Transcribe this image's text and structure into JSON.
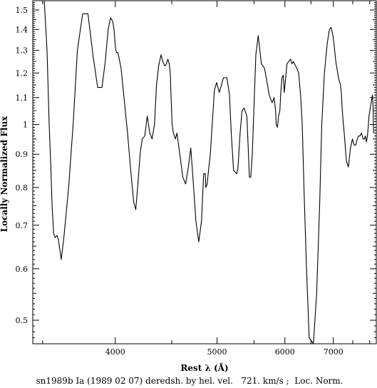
{
  "chart_data": {
    "type": "line",
    "title": "",
    "xlabel": "Rest λ (Å)",
    "ylabel": "Locally Normalized Flux",
    "caption": "sn1989b Ia (1989 02 07) deredsh. by hel. vel.   721. km/s ;  Loc. Norm.",
    "x_scale": "reciprocal",
    "y_scale": "log",
    "xlim": [
      3442,
      8213
    ],
    "ylim": [
      0.46,
      1.55
    ],
    "x_ticks": [
      {
        "value": 4000,
        "label": "4000"
      },
      {
        "value": 5000,
        "label": "5000"
      },
      {
        "value": 6000,
        "label": "6000"
      },
      {
        "value": 7000,
        "label": "7000"
      }
    ],
    "x_minor_ticks": [
      3500,
      4500,
      5500,
      6500,
      7500,
      8000
    ],
    "y_ticks": [
      {
        "value": 0.5,
        "label": "0.5"
      },
      {
        "value": 0.6,
        "label": "0.6"
      },
      {
        "value": 0.7,
        "label": "0.7"
      },
      {
        "value": 0.8,
        "label": "0.8"
      },
      {
        "value": 0.9,
        "label": "0.9"
      },
      {
        "value": 1.0,
        "label": "1"
      },
      {
        "value": 1.1,
        "label": "1.1"
      },
      {
        "value": 1.2,
        "label": "1.2"
      },
      {
        "value": 1.3,
        "label": "1.3"
      },
      {
        "value": 1.4,
        "label": "1.4"
      },
      {
        "value": 1.5,
        "label": "1.5"
      }
    ],
    "line_color": "#000000",
    "grid": false,
    "series": [
      {
        "x": [
          3510,
          3527,
          3540,
          3551,
          3558,
          3568,
          3577,
          3589,
          3598,
          3616,
          3633,
          3664,
          3694,
          3723,
          3759,
          3796,
          3834,
          3866,
          3898,
          3923,
          3945,
          3963,
          3980,
          3990,
          4002,
          4010,
          4021,
          4046,
          4074,
          4099,
          4123,
          4150,
          4168,
          4186,
          4205,
          4224,
          4246,
          4268,
          4291,
          4312,
          4334,
          4353,
          4373,
          4395,
          4412,
          4432,
          4447,
          4461,
          4475,
          4486,
          4491,
          4503,
          4516,
          4536,
          4552,
          4581,
          4612,
          4642,
          4671,
          4697,
          4723,
          4753,
          4785,
          4816,
          4832,
          4841,
          4860,
          4866,
          4882,
          4893,
          4919,
          4943,
          4968,
          4994,
          5028,
          5080,
          5124,
          5158,
          5181,
          5211,
          5253,
          5272,
          5300,
          5327,
          5357,
          5395,
          5415,
          5431,
          5452,
          5474,
          5527,
          5562,
          5612,
          5660,
          5708,
          5735,
          5782,
          5815,
          5840,
          5851,
          5871,
          5891,
          5912,
          5928,
          5948,
          5972,
          5989,
          6037,
          6072,
          6102,
          6127,
          6153,
          6174,
          6220,
          6255,
          6295,
          6323,
          6358,
          6409,
          6463,
          6552,
          6619,
          6684,
          6732,
          6792,
          6854,
          6907,
          6947,
          6990,
          7022,
          7060,
          7125,
          7175,
          7197
        ],
        "y": [
          1.55,
          1.3,
          1.0,
          0.85,
          0.75,
          0.68,
          0.67,
          0.675,
          0.665,
          0.62,
          0.67,
          0.8,
          1.0,
          1.3,
          1.48,
          1.48,
          1.27,
          1.14,
          1.14,
          1.25,
          1.4,
          1.46,
          1.44,
          1.4,
          1.31,
          1.29,
          1.29,
          1.22,
          1.08,
          0.97,
          0.86,
          0.76,
          0.74,
          0.81,
          0.9,
          0.95,
          0.96,
          1.03,
          0.97,
          0.95,
          1.0,
          1.15,
          1.23,
          1.28,
          1.25,
          1.23,
          1.24,
          1.26,
          1.24,
          1.19,
          1.12,
          1.0,
          0.97,
          0.95,
          0.97,
          0.9,
          0.83,
          0.81,
          0.86,
          0.92,
          0.82,
          0.71,
          0.66,
          0.71,
          0.79,
          0.84,
          0.84,
          0.8,
          0.81,
          0.84,
          0.9,
          1.01,
          1.13,
          1.16,
          1.12,
          1.18,
          1.18,
          1.11,
          0.97,
          0.85,
          0.84,
          0.86,
          0.97,
          1.05,
          1.06,
          1.03,
          0.92,
          0.83,
          0.83,
          0.9,
          1.28,
          1.37,
          1.24,
          1.22,
          1.15,
          1.11,
          1.08,
          1.1,
          1.05,
          1.0,
          0.99,
          1.03,
          1.05,
          1.12,
          1.18,
          1.19,
          1.12,
          1.24,
          1.25,
          1.26,
          1.24,
          1.25,
          1.24,
          1.22,
          1.2,
          1.1,
          1.0,
          0.8,
          0.6,
          0.47,
          0.46,
          0.55,
          0.75,
          1.0,
          1.2,
          1.33,
          1.4,
          1.41,
          1.37,
          1.32,
          1.25,
          1.18,
          1.15,
          1.12
        ]
      },
      {
        "x": [
          7197,
          7219,
          7245,
          7272,
          7327,
          7381,
          7439,
          7491,
          7539,
          7584,
          7627,
          7662,
          7702,
          7752,
          7796,
          7836,
          7864,
          7901,
          7939,
          7979,
          8018,
          8046,
          8088,
          8111,
          8124
        ],
        "y": [
          1.12,
          1.06,
          1.01,
          0.97,
          0.88,
          0.86,
          0.92,
          0.95,
          0.93,
          0.93,
          0.95,
          0.96,
          0.96,
          0.97,
          0.95,
          0.95,
          0.96,
          0.94,
          0.97,
          1.03,
          1.06,
          1.08,
          1.11,
          1.06,
          0.97
        ]
      }
    ]
  }
}
